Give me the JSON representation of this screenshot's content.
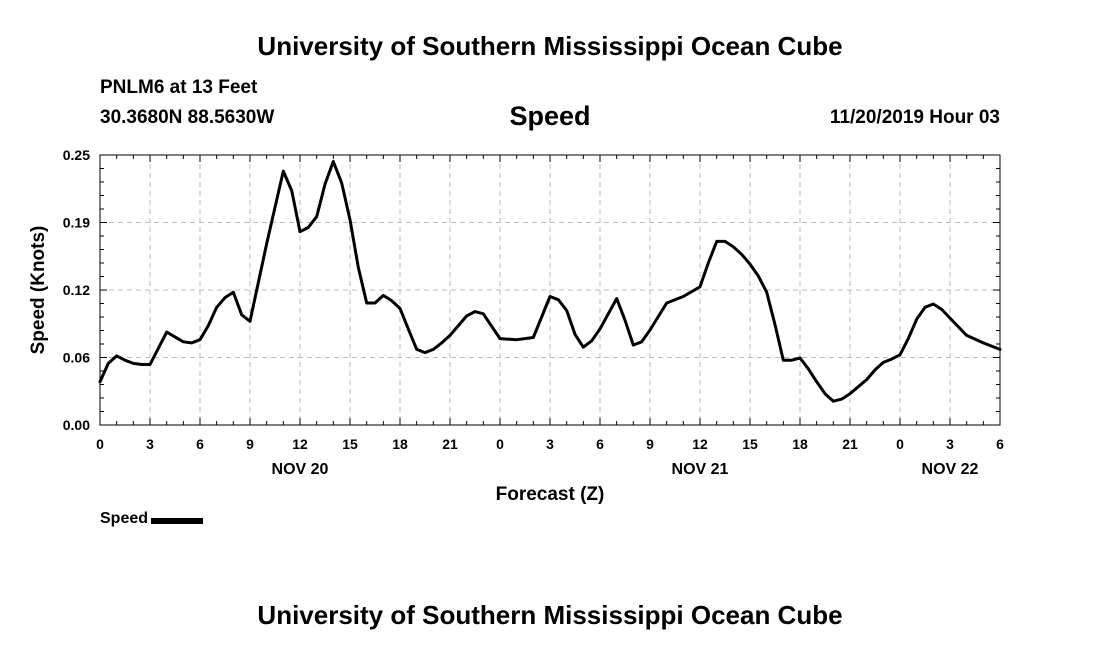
{
  "header": {
    "title": "University of Southern Mississippi Ocean Cube",
    "station": "PNLM6 at 13 Feet",
    "coords": "30.3680N 88.5630W",
    "timestamp": "11/20/2019 Hour 03"
  },
  "footer": {
    "title": "University of Southern Mississippi Ocean Cube"
  },
  "chart_data": {
    "type": "line",
    "title": "Speed",
    "xlabel": "Forecast (Z)",
    "ylabel": "Speed (Knots)",
    "ylim": [
      0,
      0.25
    ],
    "xlim": [
      0,
      54
    ],
    "y_ticks": [
      "0.00",
      "0.06",
      "0.12",
      "0.19",
      "0.25"
    ],
    "x_tick_labels": [
      "0",
      "3",
      "6",
      "9",
      "12",
      "15",
      "18",
      "21",
      "0",
      "3",
      "6",
      "9",
      "12",
      "15",
      "18",
      "21",
      "0",
      "3",
      "6"
    ],
    "day_labels": [
      {
        "label": "NOV 20",
        "hour": 12
      },
      {
        "label": "NOV 21",
        "hour": 36
      },
      {
        "label": "NOV 22",
        "hour": 51
      }
    ],
    "grid": true,
    "legend_position": "bottom-left",
    "series": [
      {
        "name": "Speed",
        "color": "#000000",
        "x": [
          0,
          0.5,
          1,
          1.5,
          2,
          2.5,
          3,
          4,
          5,
          5.5,
          6,
          6.5,
          7,
          7.5,
          8,
          8.5,
          9,
          10,
          11,
          11.5,
          12,
          12.5,
          13,
          13.5,
          14,
          14.5,
          15,
          15.5,
          16,
          16.5,
          17,
          17.5,
          18,
          18.5,
          19,
          19.5,
          20,
          20.5,
          21,
          22,
          22.5,
          23,
          24,
          25,
          26,
          27,
          27.5,
          28,
          28.5,
          29,
          29.5,
          30,
          30.5,
          31,
          31.5,
          32,
          32.5,
          33,
          34,
          35,
          36,
          36.5,
          37,
          37.5,
          38,
          38.5,
          39,
          39.5,
          40,
          40.5,
          41,
          41.5,
          42,
          42.5,
          43,
          43.5,
          44,
          44.5,
          45,
          46,
          46.5,
          47,
          47.5,
          48,
          48.5,
          49,
          49.5,
          50,
          50.5,
          51,
          52,
          53,
          54
        ],
        "values": [
          0.04,
          0.057,
          0.064,
          0.06,
          0.057,
          0.056,
          0.056,
          0.086,
          0.077,
          0.076,
          0.079,
          0.092,
          0.109,
          0.118,
          0.123,
          0.102,
          0.096,
          0.168,
          0.235,
          0.217,
          0.179,
          0.183,
          0.193,
          0.223,
          0.244,
          0.224,
          0.19,
          0.146,
          0.113,
          0.113,
          0.12,
          0.115,
          0.108,
          0.089,
          0.07,
          0.067,
          0.07,
          0.076,
          0.083,
          0.101,
          0.105,
          0.103,
          0.08,
          0.079,
          0.081,
          0.119,
          0.116,
          0.106,
          0.084,
          0.072,
          0.078,
          0.089,
          0.103,
          0.117,
          0.097,
          0.074,
          0.077,
          0.088,
          0.113,
          0.119,
          0.128,
          0.15,
          0.17,
          0.17,
          0.165,
          0.158,
          0.149,
          0.138,
          0.123,
          0.093,
          0.06,
          0.06,
          0.062,
          0.052,
          0.04,
          0.029,
          0.022,
          0.024,
          0.029,
          0.042,
          0.051,
          0.058,
          0.061,
          0.065,
          0.08,
          0.098,
          0.109,
          0.112,
          0.107,
          0.099,
          0.083,
          0.076,
          0.07
        ]
      }
    ]
  }
}
